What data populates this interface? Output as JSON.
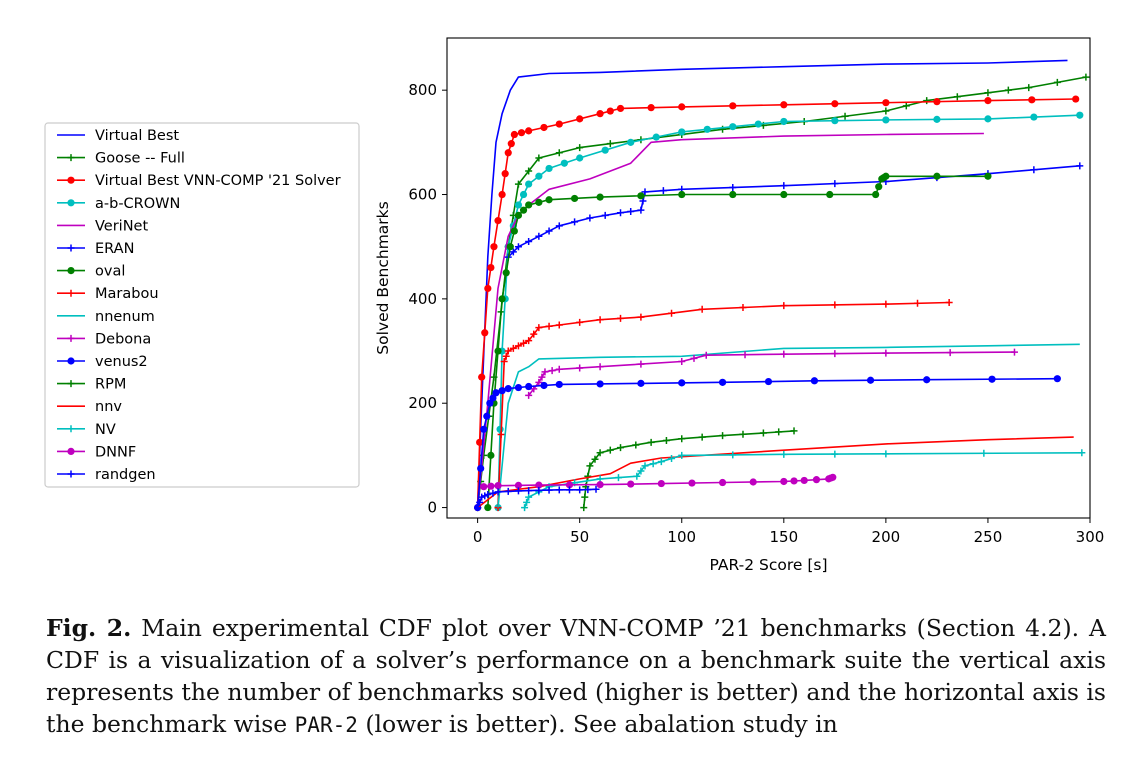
{
  "chart_data": {
    "type": "line",
    "xlabel": "PAR-2 Score [s]",
    "ylabel": "Solved Benchmarks",
    "xlim": [
      -15,
      300
    ],
    "ylim": [
      -20,
      900
    ],
    "xticks": [
      0,
      50,
      100,
      150,
      200,
      250,
      300
    ],
    "yticks": [
      0,
      200,
      400,
      600,
      800
    ],
    "legend_position": "outside-left",
    "series": [
      {
        "name": "Virtual Best",
        "color": "#0000ff",
        "marker": "none",
        "points": [
          [
            0,
            0
          ],
          [
            2,
            200
          ],
          [
            5,
            480
          ],
          [
            7,
            600
          ],
          [
            9,
            700
          ],
          [
            12,
            755
          ],
          [
            16,
            800
          ],
          [
            20,
            825
          ],
          [
            35,
            832
          ],
          [
            60,
            834
          ],
          [
            100,
            840
          ],
          [
            150,
            845
          ],
          [
            200,
            850
          ],
          [
            250,
            852
          ],
          [
            289,
            857
          ]
        ]
      },
      {
        "name": "Goose -- Full",
        "color": "#008000",
        "marker": "plus",
        "points": [
          [
            0,
            0
          ],
          [
            3,
            100
          ],
          [
            8,
            250
          ],
          [
            15,
            500
          ],
          [
            20,
            620
          ],
          [
            30,
            670
          ],
          [
            50,
            690
          ],
          [
            80,
            705
          ],
          [
            120,
            725
          ],
          [
            160,
            740
          ],
          [
            200,
            760
          ],
          [
            220,
            780
          ],
          [
            250,
            795
          ],
          [
            270,
            805
          ],
          [
            298,
            825
          ]
        ]
      },
      {
        "name": "Virtual Best VNN-COMP '21 Solver",
        "color": "#ff0000",
        "marker": "circle",
        "points": [
          [
            0,
            0
          ],
          [
            2,
            250
          ],
          [
            5,
            420
          ],
          [
            8,
            500
          ],
          [
            12,
            600
          ],
          [
            15,
            680
          ],
          [
            18,
            715
          ],
          [
            25,
            722
          ],
          [
            40,
            735
          ],
          [
            60,
            755
          ],
          [
            70,
            765
          ],
          [
            100,
            768
          ],
          [
            150,
            772
          ],
          [
            200,
            776
          ],
          [
            250,
            780
          ],
          [
            293,
            783
          ]
        ]
      },
      {
        "name": "a-b-CROWN",
        "color": "#00bfbf",
        "marker": "circle",
        "points": [
          [
            10,
            0
          ],
          [
            12,
            300
          ],
          [
            15,
            500
          ],
          [
            20,
            580
          ],
          [
            25,
            620
          ],
          [
            35,
            650
          ],
          [
            50,
            670
          ],
          [
            75,
            700
          ],
          [
            100,
            720
          ],
          [
            125,
            730
          ],
          [
            150,
            740
          ],
          [
            200,
            743
          ],
          [
            250,
            745
          ],
          [
            295,
            752
          ]
        ]
      },
      {
        "name": "VeriNet",
        "color": "#bf00bf",
        "marker": "none",
        "points": [
          [
            0,
            0
          ],
          [
            5,
            200
          ],
          [
            10,
            420
          ],
          [
            15,
            520
          ],
          [
            20,
            560
          ],
          [
            25,
            580
          ],
          [
            35,
            610
          ],
          [
            55,
            630
          ],
          [
            75,
            660
          ],
          [
            85,
            700
          ],
          [
            100,
            705
          ],
          [
            150,
            712
          ],
          [
            200,
            715
          ],
          [
            248,
            717
          ]
        ]
      },
      {
        "name": "ERAN",
        "color": "#0000ff",
        "marker": "plus",
        "points": [
          [
            15,
            480
          ],
          [
            20,
            500
          ],
          [
            30,
            520
          ],
          [
            40,
            540
          ],
          [
            55,
            555
          ],
          [
            70,
            565
          ],
          [
            80,
            570
          ],
          [
            82,
            605
          ],
          [
            100,
            610
          ],
          [
            150,
            617
          ],
          [
            200,
            625
          ],
          [
            250,
            640
          ],
          [
            295,
            655
          ]
        ]
      },
      {
        "name": "oval",
        "color": "#008000",
        "marker": "circle",
        "points": [
          [
            5,
            0
          ],
          [
            8,
            200
          ],
          [
            12,
            400
          ],
          [
            16,
            500
          ],
          [
            20,
            560
          ],
          [
            25,
            580
          ],
          [
            35,
            590
          ],
          [
            60,
            595
          ],
          [
            100,
            600
          ],
          [
            150,
            600
          ],
          [
            195,
            600
          ],
          [
            198,
            630
          ],
          [
            200,
            635
          ],
          [
            250,
            635
          ]
        ]
      },
      {
        "name": "Marabou",
        "color": "#ff0000",
        "marker": "plus",
        "points": [
          [
            10,
            0
          ],
          [
            13,
            280
          ],
          [
            15,
            300
          ],
          [
            20,
            310
          ],
          [
            25,
            320
          ],
          [
            30,
            345
          ],
          [
            40,
            350
          ],
          [
            60,
            360
          ],
          [
            80,
            365
          ],
          [
            110,
            380
          ],
          [
            150,
            387
          ],
          [
            200,
            390
          ],
          [
            231,
            393
          ]
        ]
      },
      {
        "name": "nnenum",
        "color": "#00bfbf",
        "marker": "none",
        "points": [
          [
            10,
            0
          ],
          [
            15,
            200
          ],
          [
            20,
            260
          ],
          [
            25,
            270
          ],
          [
            30,
            285
          ],
          [
            60,
            288
          ],
          [
            100,
            290
          ],
          [
            150,
            305
          ],
          [
            200,
            307
          ],
          [
            250,
            310
          ],
          [
            295,
            313
          ]
        ]
      },
      {
        "name": "Debona",
        "color": "#bf00bf",
        "marker": "plus",
        "points": [
          [
            25,
            215
          ],
          [
            30,
            240
          ],
          [
            33,
            260
          ],
          [
            40,
            265
          ],
          [
            60,
            270
          ],
          [
            100,
            280
          ],
          [
            112,
            292
          ],
          [
            150,
            294
          ],
          [
            200,
            296
          ],
          [
            263,
            298
          ]
        ]
      },
      {
        "name": "venus2",
        "color": "#0000ff",
        "marker": "circle",
        "points": [
          [
            0,
            0
          ],
          [
            3,
            150
          ],
          [
            6,
            200
          ],
          [
            9,
            220
          ],
          [
            15,
            228
          ],
          [
            25,
            232
          ],
          [
            40,
            236
          ],
          [
            80,
            238
          ],
          [
            120,
            240
          ],
          [
            165,
            243
          ],
          [
            220,
            245
          ],
          [
            284,
            247
          ]
        ]
      },
      {
        "name": "RPM",
        "color": "#008000",
        "marker": "plus",
        "points": [
          [
            52,
            0
          ],
          [
            53,
            40
          ],
          [
            55,
            80
          ],
          [
            60,
            105
          ],
          [
            70,
            115
          ],
          [
            85,
            125
          ],
          [
            100,
            132
          ],
          [
            120,
            138
          ],
          [
            140,
            143
          ],
          [
            155,
            147
          ]
        ]
      },
      {
        "name": "nnv",
        "color": "#ff0000",
        "marker": "none",
        "points": [
          [
            0,
            0
          ],
          [
            10,
            30
          ],
          [
            30,
            40
          ],
          [
            50,
            55
          ],
          [
            65,
            65
          ],
          [
            75,
            85
          ],
          [
            90,
            95
          ],
          [
            110,
            100
          ],
          [
            150,
            110
          ],
          [
            200,
            122
          ],
          [
            250,
            130
          ],
          [
            292,
            135
          ]
        ]
      },
      {
        "name": "NV",
        "color": "#00bfbf",
        "marker": "plus",
        "points": [
          [
            23,
            0
          ],
          [
            25,
            20
          ],
          [
            35,
            40
          ],
          [
            60,
            55
          ],
          [
            78,
            60
          ],
          [
            82,
            80
          ],
          [
            90,
            88
          ],
          [
            100,
            100
          ],
          [
            150,
            102
          ],
          [
            200,
            103
          ],
          [
            296,
            105
          ]
        ]
      },
      {
        "name": "DNNF",
        "color": "#bf00bf",
        "marker": "circle",
        "points": [
          [
            3,
            40
          ],
          [
            10,
            42
          ],
          [
            30,
            43
          ],
          [
            60,
            44
          ],
          [
            90,
            46
          ],
          [
            120,
            48
          ],
          [
            150,
            50
          ],
          [
            160,
            52
          ],
          [
            172,
            55
          ],
          [
            174,
            58
          ]
        ]
      },
      {
        "name": "randgen",
        "color": "#0000ff",
        "marker": "plus",
        "points": [
          [
            0,
            0
          ],
          [
            2,
            20
          ],
          [
            5,
            25
          ],
          [
            10,
            30
          ],
          [
            20,
            32
          ],
          [
            30,
            33
          ],
          [
            40,
            34
          ],
          [
            50,
            34
          ],
          [
            58,
            35
          ]
        ]
      }
    ]
  },
  "caption": {
    "lead": "Fig. 2.",
    "text1": " Main experimental CDF plot over VNN-COMP ’21 benchmarks (Section 4.2). A CDF is a visualization of a solver’s performance on a benchmark suite the vertical axis represents the number of benchmarks solved (higher is better) and the horizontal axis is the benchmark wise ",
    "code": "PAR-2",
    "text2": " (lower is better). See abalation study in"
  }
}
